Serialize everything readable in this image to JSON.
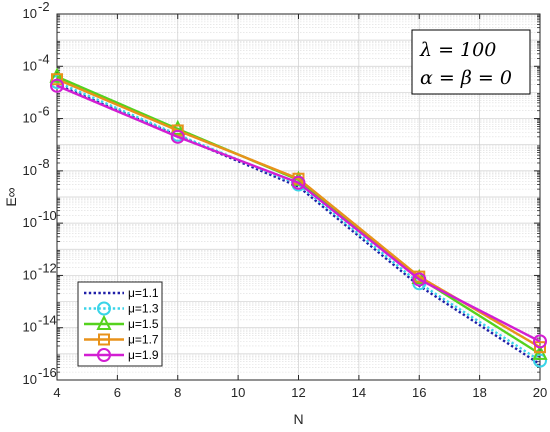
{
  "chart_data": {
    "type": "line",
    "x": [
      4,
      8,
      12,
      16,
      20
    ],
    "xlim": [
      4,
      20
    ],
    "xticks": [
      4,
      6,
      8,
      10,
      12,
      14,
      16,
      18,
      20
    ],
    "xlabel": "N",
    "ylabel": "E∞",
    "yscale": "log",
    "ylim_exp": [
      -16,
      -2
    ],
    "yticks_exp": [
      -16,
      -14,
      -12,
      -10,
      -8,
      -6,
      -4,
      -2
    ],
    "grid": true,
    "legend_position": "bottom-left",
    "series": [
      {
        "name": "μ=1.1",
        "values": [
          2e-05,
          2.2e-07,
          2.5e-09,
          4e-13,
          4e-16
        ],
        "color": "#1f1fa8",
        "style": "dotted",
        "marker": "none"
      },
      {
        "name": "μ=1.3",
        "values": [
          2.5e-05,
          2.4e-07,
          3e-09,
          5e-13,
          5.5e-16
        ],
        "color": "#3ad4e8",
        "style": "dotted",
        "marker": "circle"
      },
      {
        "name": "μ=1.5",
        "values": [
          4e-05,
          4e-07,
          4.5e-09,
          8e-13,
          1e-15
        ],
        "color": "#55d21e",
        "style": "solid",
        "marker": "triangle"
      },
      {
        "name": "μ=1.7",
        "values": [
          3.2e-05,
          3.5e-07,
          5e-09,
          9e-13,
          1.8e-15
        ],
        "color": "#e8921a",
        "style": "solid",
        "marker": "square"
      },
      {
        "name": "μ=1.9",
        "values": [
          1.8e-05,
          2e-07,
          3.5e-09,
          7e-13,
          3e-15
        ],
        "color": "#d21ed2",
        "style": "solid",
        "marker": "circle"
      }
    ],
    "annotation": [
      "λ = 100",
      "α = β = 0"
    ]
  }
}
